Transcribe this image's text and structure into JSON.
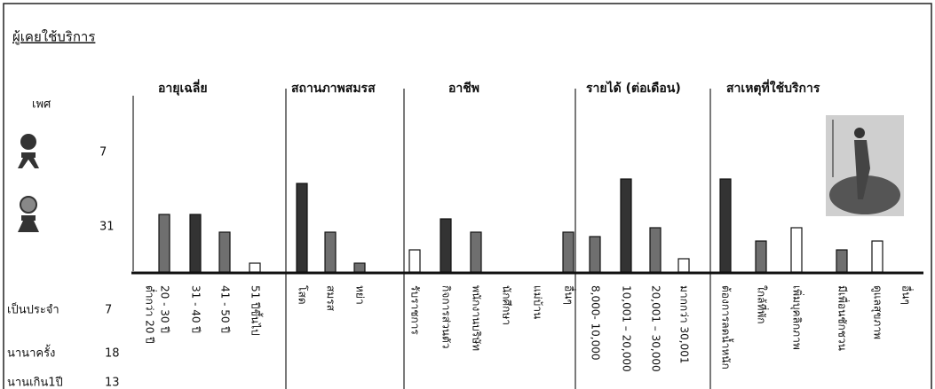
{
  "heading": "ผู้เคยใช้บริการ",
  "gender": {
    "title": "เพศ",
    "items": [
      {
        "value": 7
      },
      {
        "value": 31
      }
    ]
  },
  "frequency": [
    {
      "label": "เป็นประจำ",
      "value": 7
    },
    {
      "label": "นานาครั้ง",
      "value": 18
    },
    {
      "label": "นานเกิน1ปี",
      "value": 13
    }
  ],
  "chart_data": [
    {
      "type": "bar",
      "title": "อายุเฉลี่ย",
      "categories": [
        "20 - 30 ปี",
        "31 - 40 ปี",
        "41 - 50 ปี",
        "51 ปีขึ้นไป"
      ],
      "extra_label": "ต่ำกว่า 20 ปี",
      "values": [
        13,
        13,
        9,
        2
      ],
      "colors": [
        "#6f6f6f",
        "#333333",
        "#6f6f6f",
        "#ffffff"
      ],
      "ylim": [
        0,
        25
      ]
    },
    {
      "type": "bar",
      "title": "สถานภาพสมรส",
      "categories": [
        "โสด",
        "สมรส",
        "หย่า"
      ],
      "values": [
        20,
        9,
        2
      ],
      "colors": [
        "#333333",
        "#6f6f6f",
        "#6f6f6f"
      ],
      "ylim": [
        0,
        25
      ]
    },
    {
      "type": "bar",
      "title": "อาชีพ",
      "categories": [
        "รับราชการ",
        "กิจการส่วนตัว",
        "พนักงานบริษัท",
        "นักศึกษา",
        "แม่บ้าน",
        "อื่นๆ"
      ],
      "values": [
        5,
        12,
        9,
        0,
        0,
        9
      ],
      "colors": [
        "#ffffff",
        "#333333",
        "#6f6f6f",
        "#6f6f6f",
        "#6f6f6f",
        "#6f6f6f"
      ],
      "ylim": [
        0,
        25
      ]
    },
    {
      "type": "bar",
      "title": "รายได้ (ต่อเดือน)",
      "categories": [
        "8,000- 10,000",
        "10,001 – 20,000",
        "20,001 – 30,000",
        "มากกว่า 30,001"
      ],
      "values": [
        8,
        21,
        10,
        3
      ],
      "colors": [
        "#6f6f6f",
        "#333333",
        "#6f6f6f",
        "#ffffff"
      ],
      "ylim": [
        0,
        25
      ]
    },
    {
      "type": "bar",
      "title": "สาเหตุที่ใช้บริการ",
      "categories": [
        "ต้องการลดน้ำหนัก",
        "ใกล้ที่พัก",
        "เพิ่มบุคลิกภาพ",
        "มีเพื่อนชักชวน",
        "ดูแลสุขภาพ",
        "อื่นๆ"
      ],
      "values": [
        21,
        7,
        10,
        5,
        7,
        0
      ],
      "colors": [
        "#333333",
        "#6f6f6f",
        "#ffffff",
        "#6f6f6f",
        "#ffffff",
        "#ffffff"
      ],
      "ylim": [
        0,
        25
      ]
    }
  ]
}
